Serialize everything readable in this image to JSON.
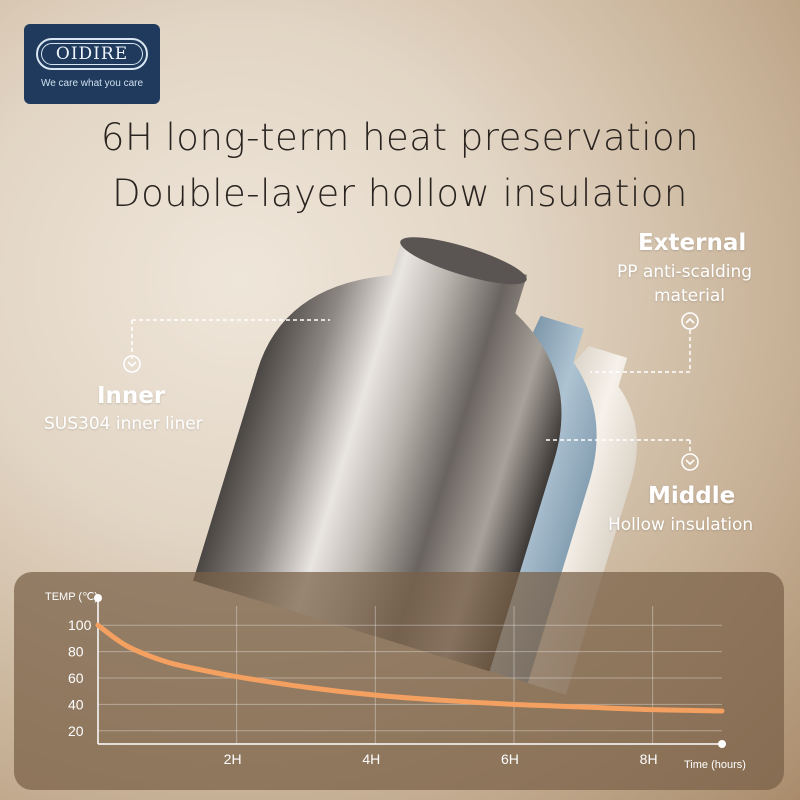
{
  "logo": {
    "name": "OIDIRE",
    "tagline": "We care what you care"
  },
  "headline": {
    "line1": "6H long-term heat preservation",
    "line2": "Double-layer hollow insulation"
  },
  "callouts": {
    "external": {
      "title": "External",
      "line1": "PP anti-scalding",
      "line2": "material"
    },
    "inner": {
      "title": "Inner",
      "subtitle": "SUS304 inner liner"
    },
    "middle": {
      "title": "Middle",
      "subtitle": "Hollow insulation"
    }
  },
  "colors": {
    "curve": "#f4a060",
    "logo_bg": "#1f3a5c",
    "middle_layer": "#9fb8c8",
    "outer_layer": "#f1ebe1"
  },
  "chart_data": {
    "type": "line",
    "ylabel": "TEMP (℃)",
    "xlabel": "Time (hours)",
    "x_ticks": [
      "2H",
      "4H",
      "6H",
      "8H"
    ],
    "y_ticks": [
      20,
      40,
      60,
      80,
      100
    ],
    "xlim": [
      0,
      9
    ],
    "ylim": [
      10,
      110
    ],
    "grid": true,
    "series": [
      {
        "x": [
          0,
          0.25,
          0.5,
          1,
          1.5,
          2,
          3,
          4,
          5,
          6,
          7,
          8,
          9
        ],
        "values": [
          100,
          90,
          82,
          72,
          66,
          61,
          53,
          47,
          43,
          40,
          38,
          36,
          35
        ]
      }
    ]
  }
}
